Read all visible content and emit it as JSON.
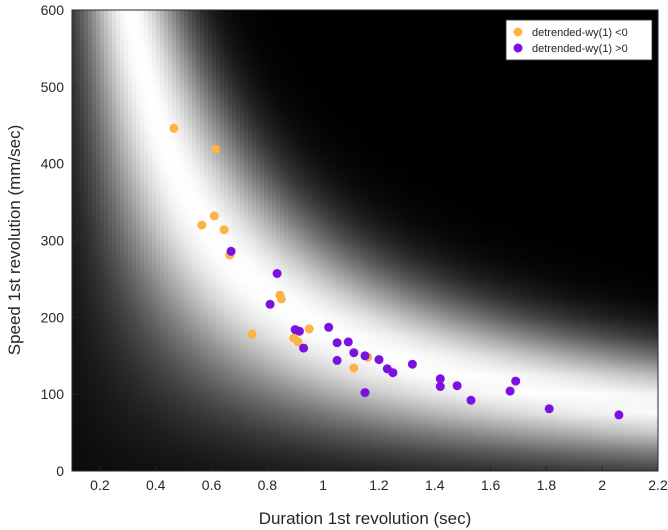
{
  "chart_data": {
    "type": "scatter",
    "title": "",
    "xlabel": "Duration 1st revolution (sec)",
    "ylabel": "Speed 1st revolution (mm/sec)",
    "xlim": [
      0.1,
      2.2
    ],
    "ylim": [
      0,
      600
    ],
    "x_ticks": [
      "0.2",
      "0.4",
      "0.6",
      "0.8",
      "1",
      "1.2",
      "1.4",
      "1.6",
      "1.8",
      "2",
      "2.2"
    ],
    "y_ticks": [
      "0",
      "100",
      "200",
      "300",
      "400",
      "500",
      "600"
    ],
    "grid": false,
    "legend_position": "top-right",
    "background": "grayscale likelihood map with bright curve near speed = 185 / duration",
    "series": [
      {
        "name": "detrended-wy(1) <0",
        "color": "#FFB347",
        "points": [
          [
            0.465,
            446
          ],
          [
            0.615,
            419
          ],
          [
            0.565,
            320
          ],
          [
            0.61,
            332
          ],
          [
            0.645,
            314
          ],
          [
            0.665,
            281
          ],
          [
            0.745,
            178
          ],
          [
            0.845,
            229
          ],
          [
            0.85,
            224
          ],
          [
            0.895,
            173
          ],
          [
            0.91,
            168
          ],
          [
            0.95,
            185
          ],
          [
            1.11,
            134
          ],
          [
            1.16,
            148
          ]
        ]
      },
      {
        "name": "detrended-wy(1) >0",
        "color": "#7B10E0",
        "points": [
          [
            0.67,
            286
          ],
          [
            0.835,
            257
          ],
          [
            0.81,
            217
          ],
          [
            0.9,
            184
          ],
          [
            0.915,
            182
          ],
          [
            0.93,
            160
          ],
          [
            1.02,
            187
          ],
          [
            1.05,
            167
          ],
          [
            1.05,
            144
          ],
          [
            1.09,
            168
          ],
          [
            1.11,
            154
          ],
          [
            1.15,
            150
          ],
          [
            1.2,
            145
          ],
          [
            1.23,
            133
          ],
          [
            1.25,
            128
          ],
          [
            1.32,
            139
          ],
          [
            1.15,
            102
          ],
          [
            1.42,
            120
          ],
          [
            1.42,
            110
          ],
          [
            1.48,
            111
          ],
          [
            1.53,
            92
          ],
          [
            1.67,
            104
          ],
          [
            1.69,
            117
          ],
          [
            1.81,
            81
          ],
          [
            2.06,
            73
          ]
        ]
      }
    ]
  }
}
